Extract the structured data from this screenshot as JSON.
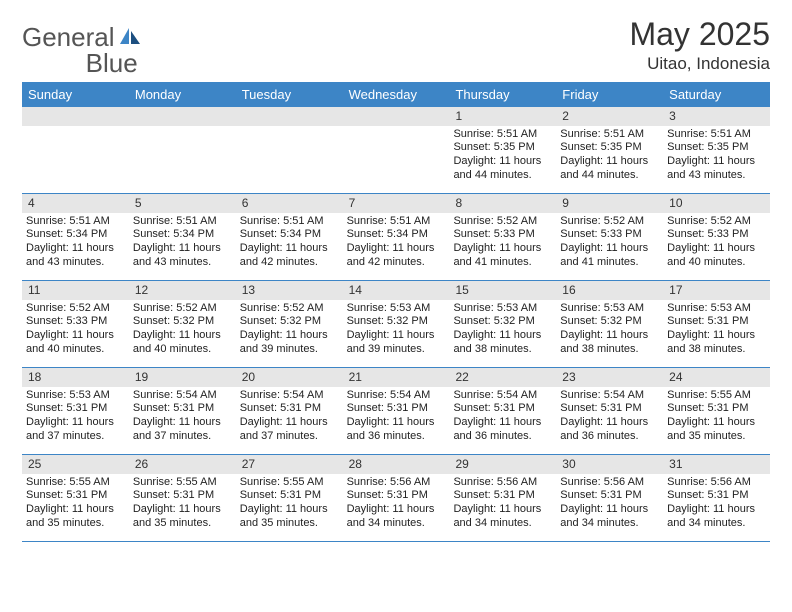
{
  "brand": {
    "name_a": "General",
    "name_b": "Blue"
  },
  "title": "May 2025",
  "location": "Uitao, Indonesia",
  "colors": {
    "accent": "#3d85c6",
    "header_text": "#ffffff",
    "daybar_bg": "#e6e6e6",
    "text": "#222222",
    "rule": "#3d85c6"
  },
  "day_headers": [
    "Sunday",
    "Monday",
    "Tuesday",
    "Wednesday",
    "Thursday",
    "Friday",
    "Saturday"
  ],
  "weeks": [
    [
      {
        "blank": true
      },
      {
        "blank": true
      },
      {
        "blank": true
      },
      {
        "blank": true
      },
      {
        "day": "1",
        "sunrise": "Sunrise: 5:51 AM",
        "sunset": "Sunset: 5:35 PM",
        "daylight": "Daylight: 11 hours and 44 minutes."
      },
      {
        "day": "2",
        "sunrise": "Sunrise: 5:51 AM",
        "sunset": "Sunset: 5:35 PM",
        "daylight": "Daylight: 11 hours and 44 minutes."
      },
      {
        "day": "3",
        "sunrise": "Sunrise: 5:51 AM",
        "sunset": "Sunset: 5:35 PM",
        "daylight": "Daylight: 11 hours and 43 minutes."
      }
    ],
    [
      {
        "day": "4",
        "sunrise": "Sunrise: 5:51 AM",
        "sunset": "Sunset: 5:34 PM",
        "daylight": "Daylight: 11 hours and 43 minutes."
      },
      {
        "day": "5",
        "sunrise": "Sunrise: 5:51 AM",
        "sunset": "Sunset: 5:34 PM",
        "daylight": "Daylight: 11 hours and 43 minutes."
      },
      {
        "day": "6",
        "sunrise": "Sunrise: 5:51 AM",
        "sunset": "Sunset: 5:34 PM",
        "daylight": "Daylight: 11 hours and 42 minutes."
      },
      {
        "day": "7",
        "sunrise": "Sunrise: 5:51 AM",
        "sunset": "Sunset: 5:34 PM",
        "daylight": "Daylight: 11 hours and 42 minutes."
      },
      {
        "day": "8",
        "sunrise": "Sunrise: 5:52 AM",
        "sunset": "Sunset: 5:33 PM",
        "daylight": "Daylight: 11 hours and 41 minutes."
      },
      {
        "day": "9",
        "sunrise": "Sunrise: 5:52 AM",
        "sunset": "Sunset: 5:33 PM",
        "daylight": "Daylight: 11 hours and 41 minutes."
      },
      {
        "day": "10",
        "sunrise": "Sunrise: 5:52 AM",
        "sunset": "Sunset: 5:33 PM",
        "daylight": "Daylight: 11 hours and 40 minutes."
      }
    ],
    [
      {
        "day": "11",
        "sunrise": "Sunrise: 5:52 AM",
        "sunset": "Sunset: 5:33 PM",
        "daylight": "Daylight: 11 hours and 40 minutes."
      },
      {
        "day": "12",
        "sunrise": "Sunrise: 5:52 AM",
        "sunset": "Sunset: 5:32 PM",
        "daylight": "Daylight: 11 hours and 40 minutes."
      },
      {
        "day": "13",
        "sunrise": "Sunrise: 5:52 AM",
        "sunset": "Sunset: 5:32 PM",
        "daylight": "Daylight: 11 hours and 39 minutes."
      },
      {
        "day": "14",
        "sunrise": "Sunrise: 5:53 AM",
        "sunset": "Sunset: 5:32 PM",
        "daylight": "Daylight: 11 hours and 39 minutes."
      },
      {
        "day": "15",
        "sunrise": "Sunrise: 5:53 AM",
        "sunset": "Sunset: 5:32 PM",
        "daylight": "Daylight: 11 hours and 38 minutes."
      },
      {
        "day": "16",
        "sunrise": "Sunrise: 5:53 AM",
        "sunset": "Sunset: 5:32 PM",
        "daylight": "Daylight: 11 hours and 38 minutes."
      },
      {
        "day": "17",
        "sunrise": "Sunrise: 5:53 AM",
        "sunset": "Sunset: 5:31 PM",
        "daylight": "Daylight: 11 hours and 38 minutes."
      }
    ],
    [
      {
        "day": "18",
        "sunrise": "Sunrise: 5:53 AM",
        "sunset": "Sunset: 5:31 PM",
        "daylight": "Daylight: 11 hours and 37 minutes."
      },
      {
        "day": "19",
        "sunrise": "Sunrise: 5:54 AM",
        "sunset": "Sunset: 5:31 PM",
        "daylight": "Daylight: 11 hours and 37 minutes."
      },
      {
        "day": "20",
        "sunrise": "Sunrise: 5:54 AM",
        "sunset": "Sunset: 5:31 PM",
        "daylight": "Daylight: 11 hours and 37 minutes."
      },
      {
        "day": "21",
        "sunrise": "Sunrise: 5:54 AM",
        "sunset": "Sunset: 5:31 PM",
        "daylight": "Daylight: 11 hours and 36 minutes."
      },
      {
        "day": "22",
        "sunrise": "Sunrise: 5:54 AM",
        "sunset": "Sunset: 5:31 PM",
        "daylight": "Daylight: 11 hours and 36 minutes."
      },
      {
        "day": "23",
        "sunrise": "Sunrise: 5:54 AM",
        "sunset": "Sunset: 5:31 PM",
        "daylight": "Daylight: 11 hours and 36 minutes."
      },
      {
        "day": "24",
        "sunrise": "Sunrise: 5:55 AM",
        "sunset": "Sunset: 5:31 PM",
        "daylight": "Daylight: 11 hours and 35 minutes."
      }
    ],
    [
      {
        "day": "25",
        "sunrise": "Sunrise: 5:55 AM",
        "sunset": "Sunset: 5:31 PM",
        "daylight": "Daylight: 11 hours and 35 minutes."
      },
      {
        "day": "26",
        "sunrise": "Sunrise: 5:55 AM",
        "sunset": "Sunset: 5:31 PM",
        "daylight": "Daylight: 11 hours and 35 minutes."
      },
      {
        "day": "27",
        "sunrise": "Sunrise: 5:55 AM",
        "sunset": "Sunset: 5:31 PM",
        "daylight": "Daylight: 11 hours and 35 minutes."
      },
      {
        "day": "28",
        "sunrise": "Sunrise: 5:56 AM",
        "sunset": "Sunset: 5:31 PM",
        "daylight": "Daylight: 11 hours and 34 minutes."
      },
      {
        "day": "29",
        "sunrise": "Sunrise: 5:56 AM",
        "sunset": "Sunset: 5:31 PM",
        "daylight": "Daylight: 11 hours and 34 minutes."
      },
      {
        "day": "30",
        "sunrise": "Sunrise: 5:56 AM",
        "sunset": "Sunset: 5:31 PM",
        "daylight": "Daylight: 11 hours and 34 minutes."
      },
      {
        "day": "31",
        "sunrise": "Sunrise: 5:56 AM",
        "sunset": "Sunset: 5:31 PM",
        "daylight": "Daylight: 11 hours and 34 minutes."
      }
    ]
  ]
}
